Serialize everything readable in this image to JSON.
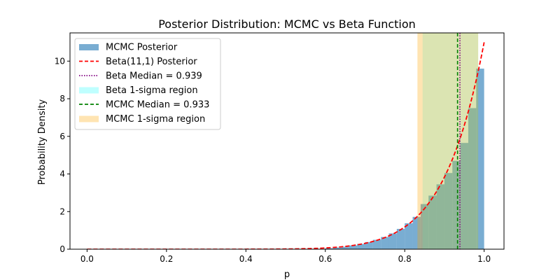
{
  "chart_data": {
    "type": "bar",
    "title": "Posterior Distribution: MCMC vs Beta Function",
    "xlabel": "p",
    "ylabel": "Probability Density",
    "xlim": [
      -0.043,
      1.05
    ],
    "ylim": [
      0,
      11.5
    ],
    "xticks": [
      0.0,
      0.2,
      0.4,
      0.6,
      0.8,
      1.0
    ],
    "xtick_labels": [
      "0.0",
      "0.2",
      "0.4",
      "0.6",
      "0.8",
      "1.0"
    ],
    "yticks": [
      0,
      2,
      4,
      6,
      8,
      10
    ],
    "ytick_labels": [
      "0",
      "2",
      "4",
      "6",
      "8",
      "10"
    ],
    "grid": false,
    "legend_position": "top-left",
    "histogram": {
      "name": "MCMC Posterior",
      "color": "#1f77b4",
      "alpha": 0.6,
      "bin_width": 0.02,
      "bin_starts": [
        0.6,
        0.62,
        0.64,
        0.66,
        0.68,
        0.7,
        0.72,
        0.74,
        0.76,
        0.78,
        0.8,
        0.82,
        0.84,
        0.86,
        0.88,
        0.9,
        0.92,
        0.94,
        0.96,
        0.98
      ],
      "values": [
        0.05,
        0.09,
        0.13,
        0.2,
        0.28,
        0.38,
        0.5,
        0.65,
        0.84,
        1.08,
        1.38,
        1.72,
        2.4,
        2.85,
        3.45,
        4.05,
        4.7,
        5.65,
        7.5,
        9.6
      ]
    },
    "beta_curve": {
      "name": "Beta(11,1) Posterior",
      "color": "#ff0000",
      "alpha_param": 11,
      "beta_param": 1,
      "x_range": [
        0.0,
        1.0
      ]
    },
    "beta_median": {
      "name": "Beta Median = 0.939",
      "value": 0.939,
      "color": "#800080"
    },
    "beta_region": {
      "name": "Beta 1-sigma region",
      "range": [
        0.845,
        0.985
      ],
      "color": "#00ffff"
    },
    "mcmc_median": {
      "name": "MCMC Median = 0.933",
      "value": 0.933,
      "color": "#008000"
    },
    "mcmc_region": {
      "name": "MCMC 1-sigma region",
      "range": [
        0.832,
        0.985
      ],
      "color": "#ffa500"
    },
    "legend": [
      "MCMC Posterior",
      "Beta(11,1) Posterior",
      "Beta Median = 0.939",
      "Beta 1-sigma region",
      "MCMC Median = 0.933",
      "MCMC 1-sigma region"
    ]
  }
}
